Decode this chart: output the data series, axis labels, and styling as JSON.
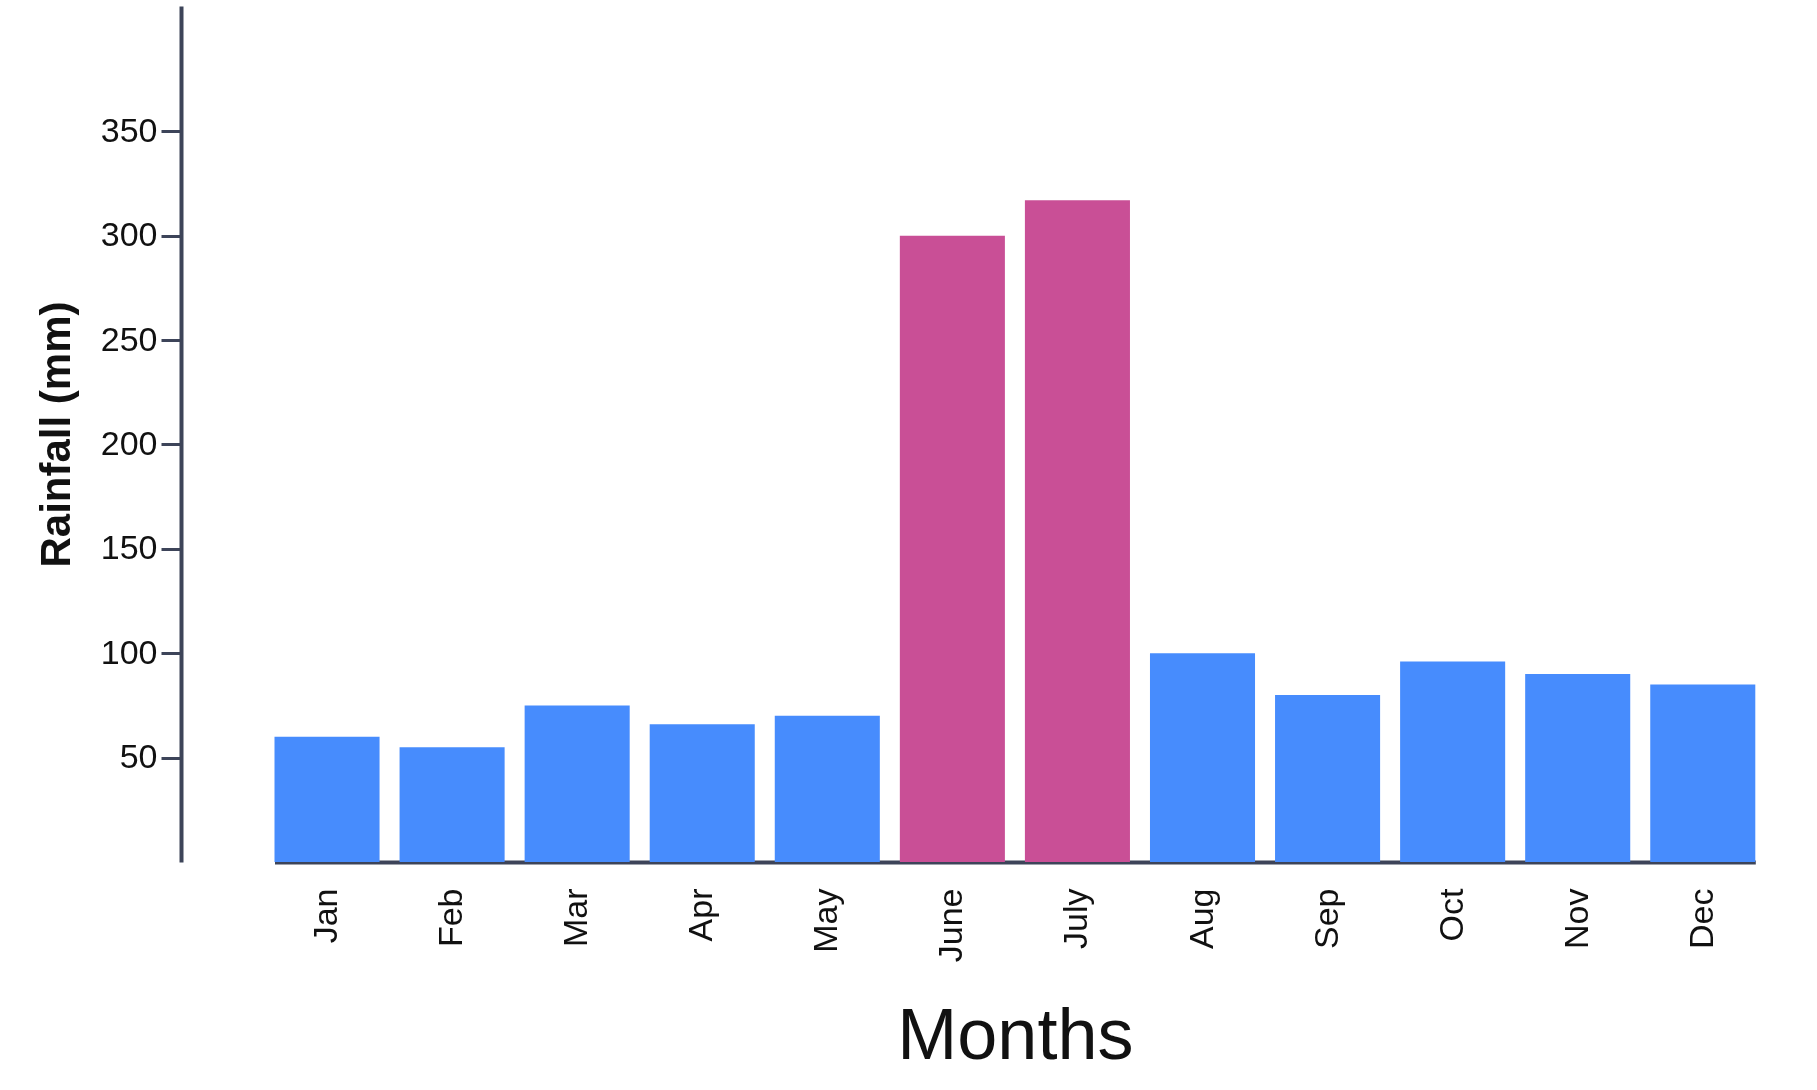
{
  "chart_data": {
    "type": "bar",
    "xlabel": "Months",
    "ylabel": "Rainfall (mm)",
    "categories": [
      "Jan",
      "Feb",
      "Mar",
      "Apr",
      "May",
      "June",
      "July",
      "Aug",
      "Sep",
      "Oct",
      "Nov",
      "Dec"
    ],
    "values": [
      60,
      55,
      75,
      66,
      70,
      300,
      317,
      100,
      80,
      96,
      90,
      85
    ],
    "colors": [
      "#478cfd",
      "#478cfd",
      "#478cfd",
      "#478cfd",
      "#478cfd",
      "#c94f96",
      "#c94f96",
      "#478cfd",
      "#478cfd",
      "#478cfd",
      "#478cfd",
      "#478cfd"
    ],
    "ylim": [
      0,
      410
    ],
    "yticks": [
      50,
      100,
      150,
      200,
      250,
      300,
      350
    ],
    "grid": false
  }
}
